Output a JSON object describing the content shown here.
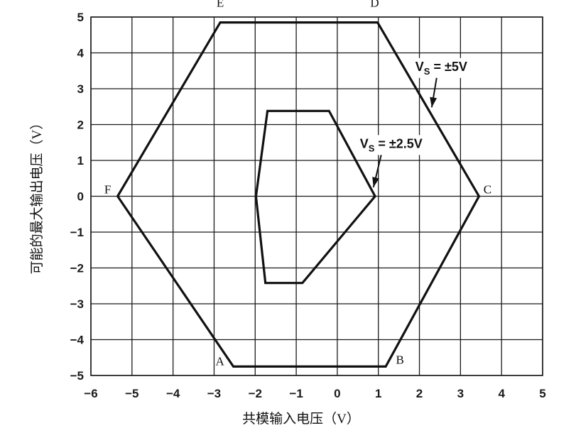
{
  "chart_data": {
    "type": "line",
    "title": "",
    "xlabel": "共模输入电压（V）",
    "ylabel": "可能的最大输出电压（V）",
    "xlim": [
      -6,
      5
    ],
    "ylim": [
      -5,
      5
    ],
    "grid": true,
    "x_ticks": [
      -6,
      -5,
      -4,
      -3,
      -2,
      -1,
      0,
      1,
      2,
      3,
      4,
      5
    ],
    "y_ticks": [
      -5,
      -4,
      -3,
      -2,
      -1,
      0,
      1,
      2,
      3,
      4,
      5
    ],
    "tick_labels_x": [
      "−6",
      "−5",
      "−4",
      "−3",
      "−2",
      "−1",
      "0",
      "1",
      "2",
      "3",
      "4",
      "5"
    ],
    "tick_labels_y": [
      "−5",
      "−4",
      "−3",
      "−2",
      "−1",
      "0",
      "1",
      "2",
      "3",
      "4",
      "5"
    ],
    "series": [
      {
        "name": "VS = ±5V",
        "closed": true,
        "x": [
          -2.85,
          0.98,
          3.45,
          1.18,
          -2.53,
          -5.35
        ],
        "y": [
          4.85,
          4.85,
          0,
          -4.75,
          -4.75,
          0
        ]
      },
      {
        "name": "VS = ±2.5V",
        "closed": true,
        "x": [
          -1.7,
          -0.2,
          0.92,
          -0.85,
          -1.65,
          -1.75,
          -1.98
        ],
        "y": [
          2.38,
          2.38,
          0,
          -2.42,
          -2.42,
          -2.42,
          0
        ]
      }
    ],
    "vertex_labels": [
      {
        "label": "E",
        "x": -2.85,
        "y": 4.85
      },
      {
        "label": "D",
        "x": 0.98,
        "y": 4.85
      },
      {
        "label": "C",
        "x": 3.45,
        "y": 0
      },
      {
        "label": "B",
        "x": 1.18,
        "y": -4.75
      },
      {
        "label": "A",
        "x": -2.53,
        "y": -4.75
      },
      {
        "label": "F",
        "x": -5.35,
        "y": 0
      }
    ],
    "annotations": [
      {
        "main": "V",
        "sub": "S",
        "rest": " = ±5V",
        "text_at": [
          1.9,
          3.5
        ],
        "arrow_to": [
          2.3,
          2.48
        ]
      },
      {
        "main": "V",
        "sub": "S",
        "rest": " = ±2.5V",
        "text_at": [
          0.55,
          1.35
        ],
        "arrow_to": [
          0.88,
          0.25
        ]
      }
    ],
    "colors": {
      "line": "#111111",
      "grid": "#1a1a1a",
      "background": "#ffffff"
    }
  }
}
